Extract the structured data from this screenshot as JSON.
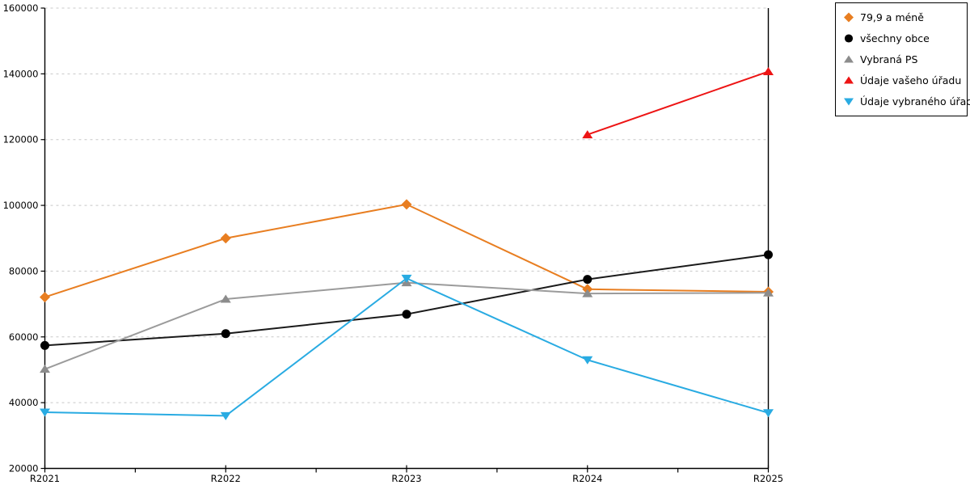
{
  "chart_data": {
    "type": "line",
    "title": "",
    "xlabel": "",
    "ylabel": "",
    "categories": [
      "R2021",
      "R2022",
      "R2023",
      "R2024",
      "R2025"
    ],
    "y_ticks": [
      20000,
      40000,
      60000,
      80000,
      100000,
      120000,
      140000,
      160000
    ],
    "ylim": [
      20000,
      160000
    ],
    "grid": "horizontal-dashed",
    "x_minor_ticks": "midpoints-between-categories",
    "legend_position": "outside-top-right",
    "axis_color": "#000000",
    "grid_color": "#C8C8C8",
    "series": [
      {
        "name": "79,9 a méně",
        "marker": "diamond",
        "color": "#E87E21",
        "line_color": "#E87E21",
        "values": [
          72100,
          90000,
          100300,
          74500,
          73700
        ]
      },
      {
        "name": "všechny obce",
        "marker": "circle",
        "color": "#000000",
        "line_color": "#1A1A1A",
        "values": [
          57400,
          61000,
          66900,
          77500,
          85000
        ]
      },
      {
        "name": "Vybraná PS",
        "marker": "triangle-up",
        "color": "#8C8C8C",
        "line_color": "#9B9B9B",
        "values": [
          50200,
          71500,
          76500,
          73200,
          73400
        ]
      },
      {
        "name": "Údaje vašeho úřadu",
        "marker": "triangle-up",
        "color": "#ED1414",
        "line_color": "#ED1414",
        "values": [
          null,
          null,
          null,
          121500,
          140700
        ]
      },
      {
        "name": "Údaje vybraného úřadu",
        "marker": "triangle-down",
        "color": "#29ABE2",
        "line_color": "#29ABE2",
        "values": [
          37100,
          36000,
          77800,
          53000,
          36900
        ]
      }
    ]
  }
}
